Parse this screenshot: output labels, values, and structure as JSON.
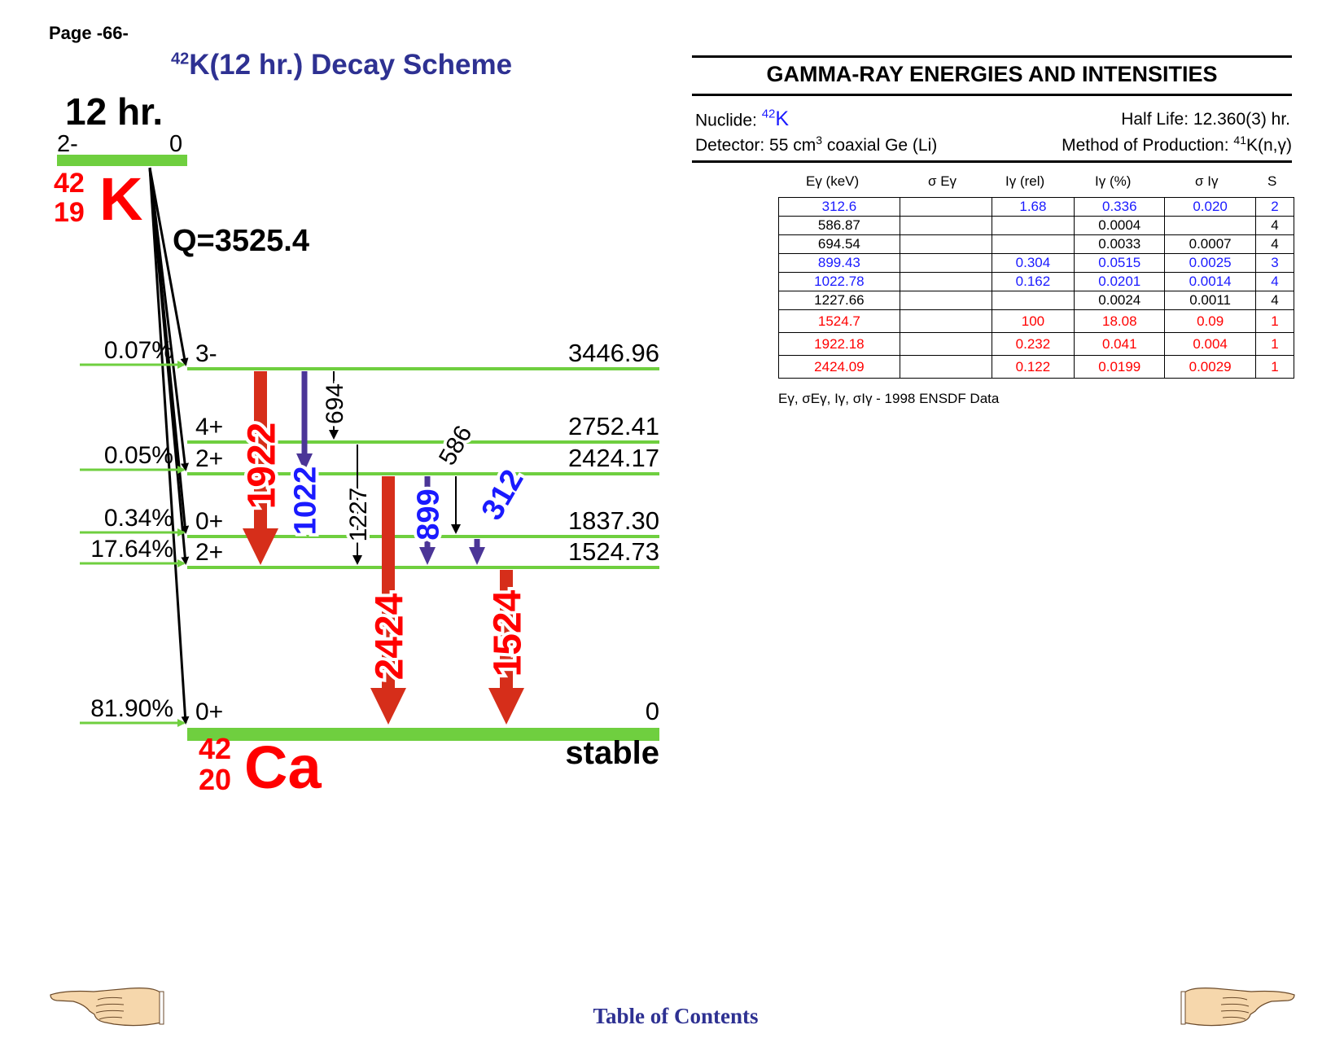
{
  "page_label": "Page -66-",
  "title": {
    "sup": "42",
    "main": "K(12 hr.) Decay Scheme"
  },
  "parent": {
    "halflife": "12 hr.",
    "spin": "2-",
    "energy": "0",
    "mass": "42",
    "z": "19",
    "symbol": "K",
    "q_value": "Q=3525.4"
  },
  "daughter": {
    "mass": "42",
    "z": "20",
    "symbol": "Ca",
    "stable_label": "stable"
  },
  "levels": [
    {
      "energy": 3446.96,
      "label": "3446.96",
      "spin": "3-",
      "feeding": "0.07%"
    },
    {
      "energy": 2752.41,
      "label": "2752.41",
      "spin": "4+",
      "feeding": ""
    },
    {
      "energy": 2424.17,
      "label": "2424.17",
      "spin": "2+",
      "feeding": "0.05%"
    },
    {
      "energy": 1837.3,
      "label": "1837.30",
      "spin": "0+",
      "feeding": "0.34%"
    },
    {
      "energy": 1524.73,
      "label": "1524.73",
      "spin": "2+",
      "feeding": "17.64%"
    },
    {
      "energy": 0,
      "label": "0",
      "spin": "0+",
      "feeding": "81.90%"
    }
  ],
  "transitions": [
    {
      "label": "1922",
      "from": 3446.96,
      "to": 1524.73,
      "color": "#d62e1a",
      "text_color": "#ff0000",
      "weight": "heavy"
    },
    {
      "label": "1022",
      "from": 3446.96,
      "to": 2424.17,
      "color": "#4b3597",
      "text_color": "#1a1aff",
      "weight": "medium"
    },
    {
      "label": "694",
      "from": 3446.96,
      "to": 2752.41,
      "color": "#000000",
      "text_color": "#000000",
      "weight": "thin"
    },
    {
      "label": "1227",
      "from": 2752.41,
      "to": 1524.73,
      "color": "#000000",
      "text_color": "#000000",
      "weight": "thin"
    },
    {
      "label": "2424",
      "from": 2424.17,
      "to": 0,
      "color": "#d62e1a",
      "text_color": "#ff0000",
      "weight": "heavy"
    },
    {
      "label": "899",
      "from": 2424.17,
      "to": 1524.73,
      "color": "#4b3597",
      "text_color": "#1a1aff",
      "weight": "medium"
    },
    {
      "label": "586",
      "from": 2424.17,
      "to": 1837.3,
      "color": "#000000",
      "text_color": "#000000",
      "weight": "thin"
    },
    {
      "label": "312",
      "from": 1837.3,
      "to": 1524.73,
      "color": "#4b3597",
      "text_color": "#1a1aff",
      "weight": "medium"
    },
    {
      "label": "1524",
      "from": 1524.73,
      "to": 0,
      "color": "#d62e1a",
      "text_color": "#ff0000",
      "weight": "heavy"
    }
  ],
  "gamma_table": {
    "title": "GAMMA-RAY ENERGIES AND INTENSITIES",
    "nuclide_label": "Nuclide:",
    "nuclide_mass": "42",
    "nuclide_symbol": "K",
    "halflife": "Half Life: 12.360(3) hr.",
    "detector_pre": "Detector: 55 cm",
    "detector_sup": "3",
    "detector_post": " coaxial Ge (Li)",
    "method_pre": "Method of Production: ",
    "method_sup": "41",
    "method_post": "K(n,γ)",
    "headers": [
      "Eγ (keV)",
      "σ Eγ",
      "Iγ (rel)",
      "Iγ (%)",
      "σ Iγ",
      "S"
    ],
    "rows": [
      {
        "e": "312.6",
        "se": "",
        "irel": "1.68",
        "ipct": "0.336",
        "si": "0.020",
        "s": "2",
        "color": "blue"
      },
      {
        "e": "586.87",
        "se": "",
        "irel": "",
        "ipct": "0.0004",
        "si": "",
        "s": "4",
        "color": "black"
      },
      {
        "e": "694.54",
        "se": "",
        "irel": "",
        "ipct": "0.0033",
        "si": "0.0007",
        "s": "4",
        "color": "black"
      },
      {
        "e": "899.43",
        "se": "",
        "irel": "0.304",
        "ipct": "0.0515",
        "si": "0.0025",
        "s": "3",
        "color": "blue"
      },
      {
        "e": "1022.78",
        "se": "",
        "irel": "0.162",
        "ipct": "0.0201",
        "si": "0.0014",
        "s": "4",
        "color": "blue"
      },
      {
        "e": "1227.66",
        "se": "",
        "irel": "",
        "ipct": "0.0024",
        "si": "0.0011",
        "s": "4",
        "color": "black"
      },
      {
        "e": "1524.7",
        "se": "",
        "irel": "100",
        "ipct": "18.08",
        "si": "0.09",
        "s": "1",
        "color": "red"
      },
      {
        "e": "1922.18",
        "se": "",
        "irel": "0.232",
        "ipct": "0.041",
        "si": "0.004",
        "s": "1",
        "color": "red"
      },
      {
        "e": "2424.09",
        "se": "",
        "irel": "0.122",
        "ipct": "0.0199",
        "si": "0.0029",
        "s": "1",
        "color": "red"
      }
    ],
    "footnote": "Eγ, σEγ, Iγ, σIγ - 1998 ENSDF Data"
  },
  "nav": {
    "toc_label": "Table of Contents",
    "prev_icon": "pointing-hand-left",
    "next_icon": "pointing-hand-right"
  },
  "colors": {
    "level_green": "#6fcf3f",
    "title_blue": "#2e3192",
    "red": "#ff0000",
    "blue": "#1a1aff"
  }
}
